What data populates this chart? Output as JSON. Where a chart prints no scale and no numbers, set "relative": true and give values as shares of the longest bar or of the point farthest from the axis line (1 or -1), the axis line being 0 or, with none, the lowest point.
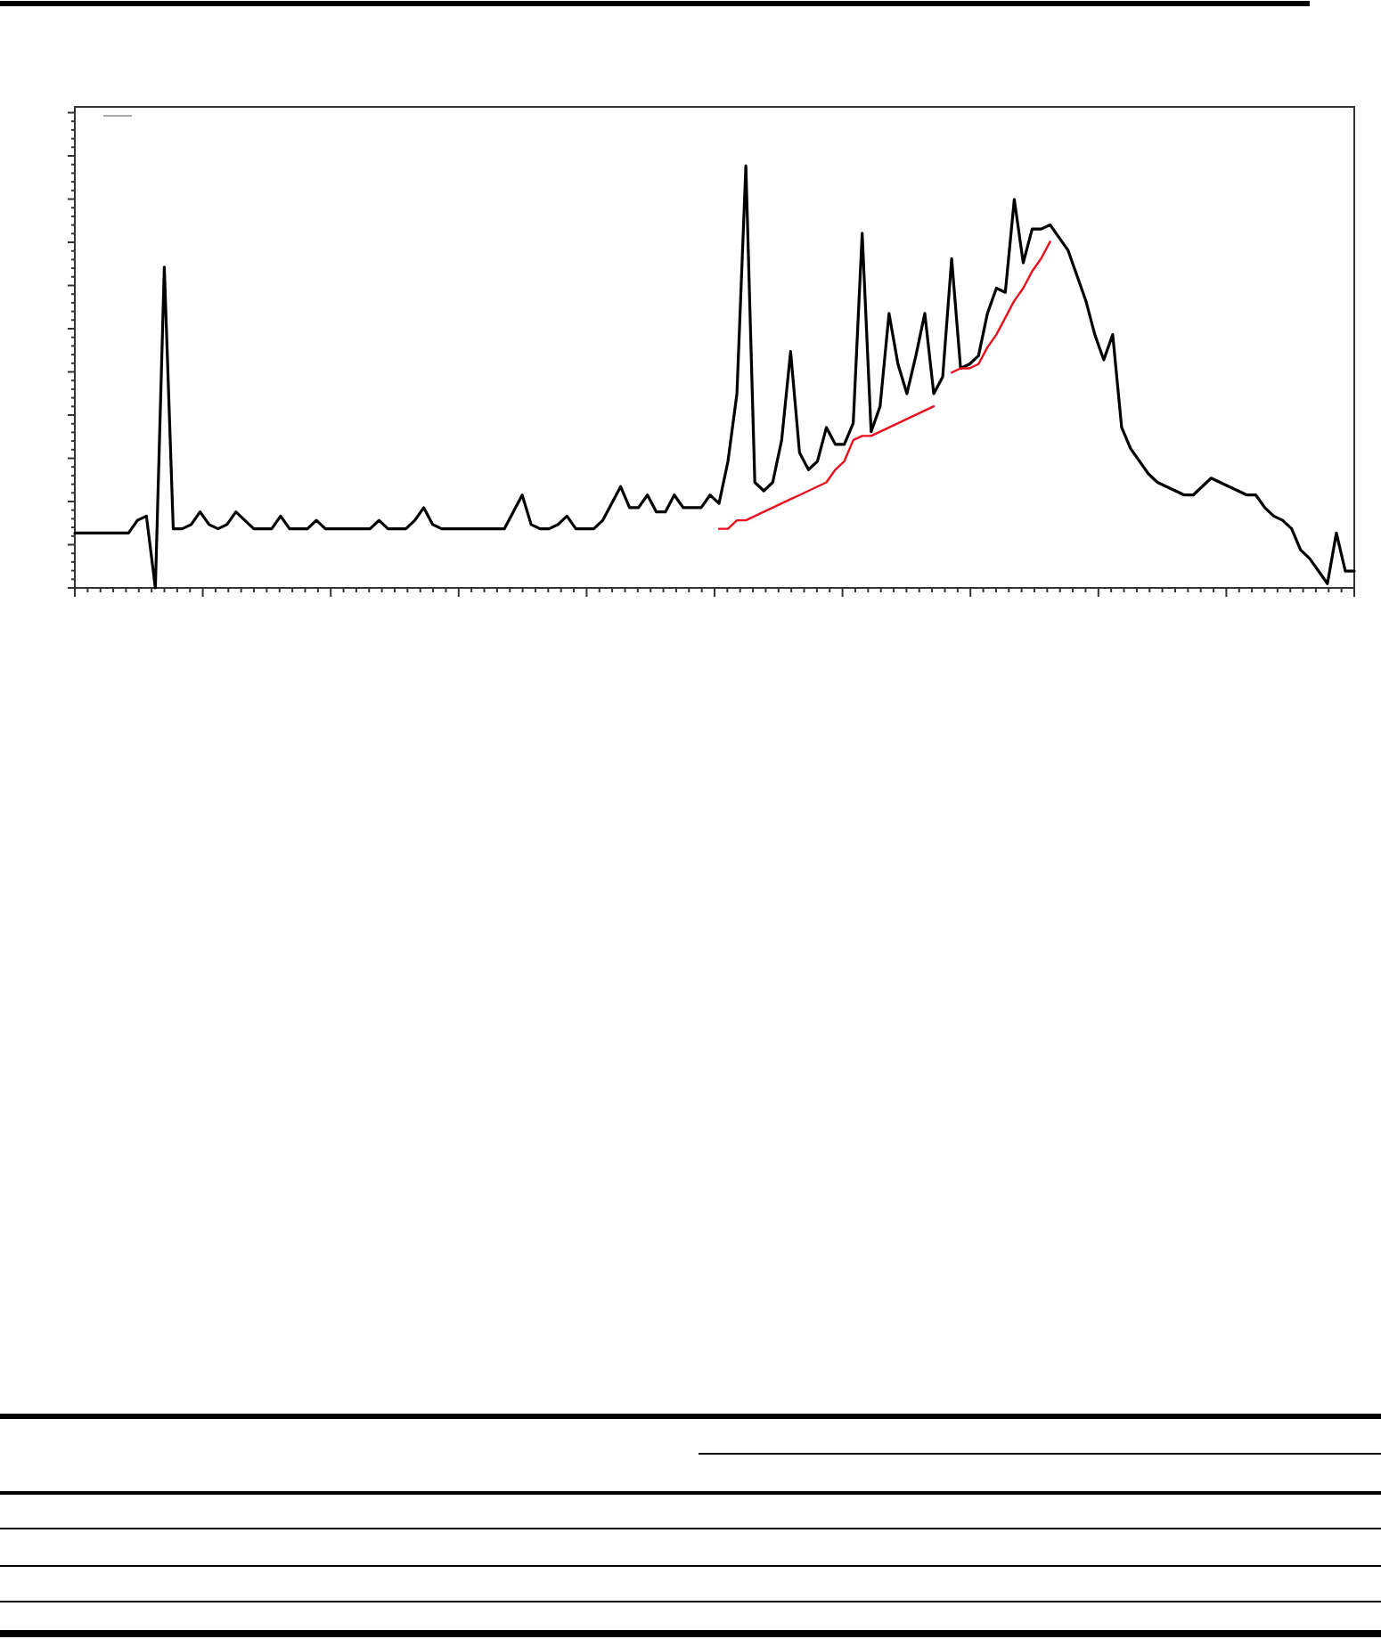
{
  "chart_data": {
    "type": "line",
    "relative": true,
    "categories": [
      null,
      null,
      null,
      null,
      null,
      null,
      null,
      null,
      null,
      null,
      null,
      null,
      null,
      null,
      null,
      null,
      null,
      null,
      null,
      null,
      null,
      null,
      null,
      null,
      null,
      null,
      null,
      null,
      null,
      null,
      null,
      null,
      null,
      null,
      null,
      null,
      null,
      null,
      null,
      null,
      null,
      null,
      null,
      null,
      null,
      null,
      null,
      null,
      null,
      null,
      null,
      null,
      null,
      null,
      null,
      null,
      null,
      null,
      null,
      null,
      null,
      null,
      null,
      null,
      null,
      null,
      null,
      null,
      null,
      null,
      null,
      null,
      null,
      null,
      null,
      null,
      null,
      null,
      null,
      null,
      null,
      null,
      null,
      null,
      null,
      null,
      null,
      null,
      null,
      null,
      null,
      null,
      null,
      null,
      null,
      null,
      null,
      null,
      null,
      null,
      null,
      null,
      null,
      null,
      null,
      null,
      null,
      null,
      null,
      null,
      null,
      null,
      null,
      null,
      null,
      null,
      null,
      null,
      null,
      null,
      null,
      null,
      null,
      null,
      null,
      null,
      null,
      null,
      null,
      null,
      null,
      null,
      null,
      null,
      null,
      null,
      null,
      null,
      null,
      null,
      null,
      null,
      null,
      null
    ],
    "series": [
      {
        "color": "#000000",
        "values": [
          0.13,
          0.13,
          0.13,
          0.13,
          0.13,
          0.13,
          0.13,
          0.16,
          0.17,
          0,
          0.76,
          0.14,
          0.14,
          0.15,
          0.18,
          0.15,
          0.14,
          0.15,
          0.18,
          0.16,
          0.14,
          0.14,
          0.14,
          0.17,
          0.14,
          0.14,
          0.14,
          0.16,
          0.14,
          0.14,
          0.14,
          0.14,
          0.14,
          0.14,
          0.16,
          0.14,
          0.14,
          0.14,
          0.16,
          0.19,
          0.15,
          0.14,
          0.14,
          0.14,
          0.14,
          0.14,
          0.14,
          0.14,
          0.14,
          0.18,
          0.22,
          0.15,
          0.14,
          0.14,
          0.15,
          0.17,
          0.14,
          0.14,
          0.14,
          0.16,
          0.2,
          0.24,
          0.19,
          0.19,
          0.22,
          0.18,
          0.18,
          0.22,
          0.19,
          0.19,
          0.19,
          0.22,
          0.2,
          0.3,
          0.46,
          1,
          0.25,
          0.23,
          0.25,
          0.35,
          0.56,
          0.32,
          0.28,
          0.3,
          0.38,
          0.34,
          0.34,
          0.39,
          0.84,
          0.37,
          0.43,
          0.65,
          0.53,
          0.46,
          0.55,
          0.65,
          0.46,
          0.5,
          0.78,
          0.52,
          0.53,
          0.55,
          0.65,
          0.71,
          0.7,
          0.92,
          0.77,
          0.85,
          0.85,
          0.86,
          0.83,
          0.8,
          0.74,
          0.68,
          0.6,
          0.54,
          0.6,
          0.38,
          0.33,
          0.3,
          0.27,
          0.25,
          0.24,
          0.23,
          0.22,
          0.22,
          0.24,
          0.26,
          0.25,
          0.24,
          0.23,
          0.22,
          0.22,
          0.19,
          0.17,
          0.16,
          0.14,
          0.09,
          0.07,
          0.04,
          0.01,
          0.13,
          0.04,
          0.04
        ]
      },
      {
        "color": "#e8101c",
        "values": [
          null,
          null,
          null,
          null,
          null,
          null,
          null,
          null,
          null,
          null,
          null,
          null,
          null,
          null,
          null,
          null,
          null,
          null,
          null,
          null,
          null,
          null,
          null,
          null,
          null,
          null,
          null,
          null,
          null,
          null,
          null,
          null,
          null,
          null,
          null,
          null,
          null,
          null,
          null,
          null,
          null,
          null,
          null,
          null,
          null,
          null,
          null,
          null,
          null,
          null,
          null,
          null,
          null,
          null,
          null,
          null,
          null,
          null,
          null,
          null,
          null,
          null,
          null,
          null,
          null,
          null,
          null,
          null,
          null,
          null,
          null,
          null,
          0.14,
          0.14,
          0.16,
          0.16,
          0.17,
          0.18,
          0.19,
          0.2,
          0.21,
          0.22,
          0.23,
          0.24,
          0.25,
          0.28,
          0.3,
          0.35,
          0.36,
          0.36,
          0.37,
          0.38,
          0.39,
          0.4,
          0.41,
          0.42,
          0.43,
          null,
          0.51,
          0.52,
          0.52,
          0.53,
          0.57,
          0.6,
          0.64,
          0.68,
          0.71,
          0.75,
          0.78,
          0.82,
          null,
          null,
          null,
          null,
          null,
          null,
          null,
          null,
          null,
          null,
          null,
          null,
          null,
          null,
          null,
          null,
          null,
          null,
          null,
          null,
          null,
          null,
          null,
          null,
          null,
          null,
          null,
          null,
          null,
          null,
          null,
          null,
          null,
          null
        ]
      }
    ]
  }
}
